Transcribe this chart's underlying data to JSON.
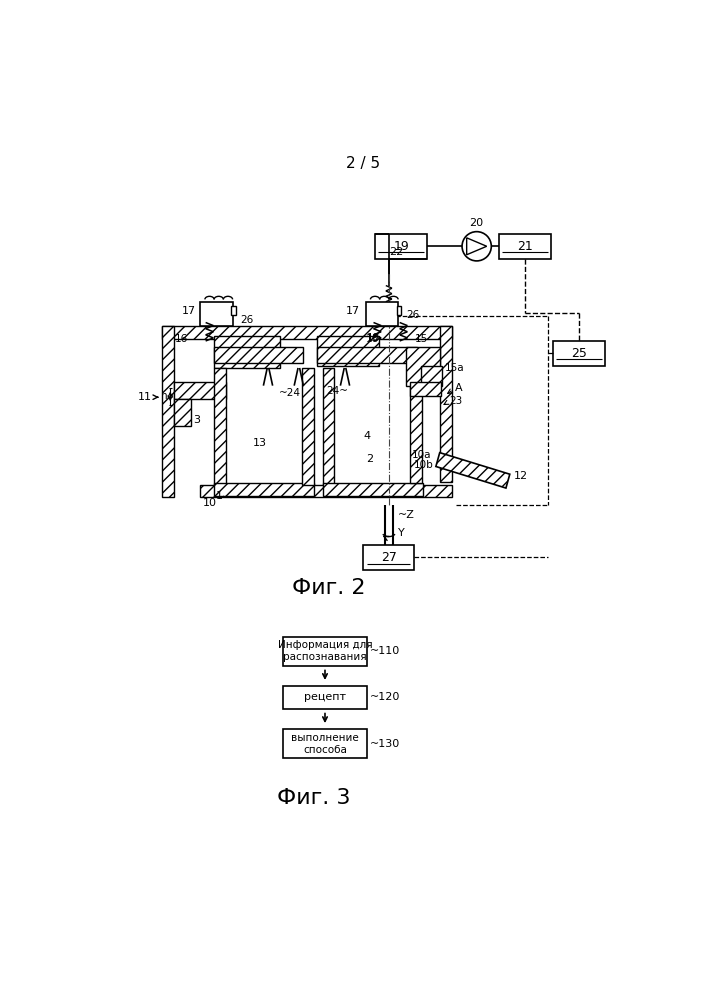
{
  "bg_color": "#ffffff",
  "fig2_label": "Фиг. 2",
  "fig3_label": "Фиг. 3",
  "page_label": "2 / 5",
  "flow_box1_line1": "Информация для",
  "flow_box1_line2": "распознавания",
  "flow_box2": "рецепт",
  "flow_box3_line1": "выполнение",
  "flow_box3_line2": "способа"
}
